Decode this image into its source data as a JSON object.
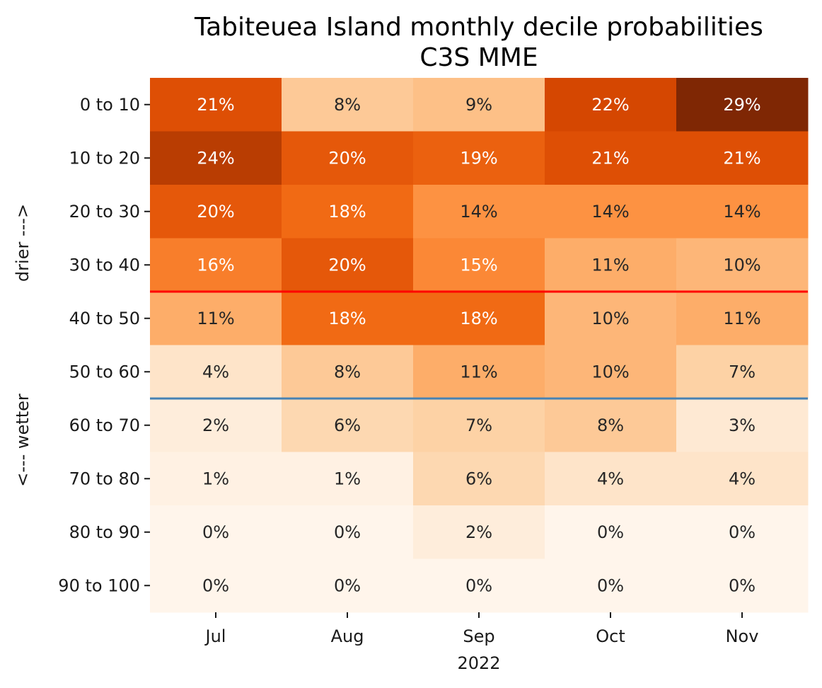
{
  "chart_data": {
    "type": "heatmap",
    "title": "Tabiteuea Island monthly decile probabilities",
    "subtitle": "C3S MME",
    "xlabel": "2022",
    "ylabel_top": "drier --->",
    "ylabel_bottom": "<--- wetter",
    "x_categories": [
      "Jul",
      "Aug",
      "Sep",
      "Oct",
      "Nov"
    ],
    "y_categories": [
      "0 to 10",
      "10 to 20",
      "20 to 30",
      "30 to 40",
      "40 to 50",
      "50 to 60",
      "60 to 70",
      "70 to 80",
      "80 to 90",
      "90 to 100"
    ],
    "values": [
      [
        21,
        8,
        9,
        22,
        29
      ],
      [
        24,
        20,
        19,
        21,
        21
      ],
      [
        20,
        18,
        14,
        14,
        14
      ],
      [
        16,
        20,
        15,
        11,
        10
      ],
      [
        11,
        18,
        18,
        10,
        11
      ],
      [
        4,
        8,
        11,
        10,
        7
      ],
      [
        2,
        6,
        7,
        8,
        3
      ],
      [
        1,
        1,
        6,
        4,
        4
      ],
      [
        0,
        0,
        2,
        0,
        0
      ],
      [
        0,
        0,
        0,
        0,
        0
      ]
    ],
    "value_format": "{v}%",
    "colormap": "Oranges",
    "lines": [
      {
        "between_rows": [
          3,
          4
        ],
        "color": "#ff0000"
      },
      {
        "between_rows": [
          5,
          6
        ],
        "color": "#4682b4"
      }
    ]
  }
}
